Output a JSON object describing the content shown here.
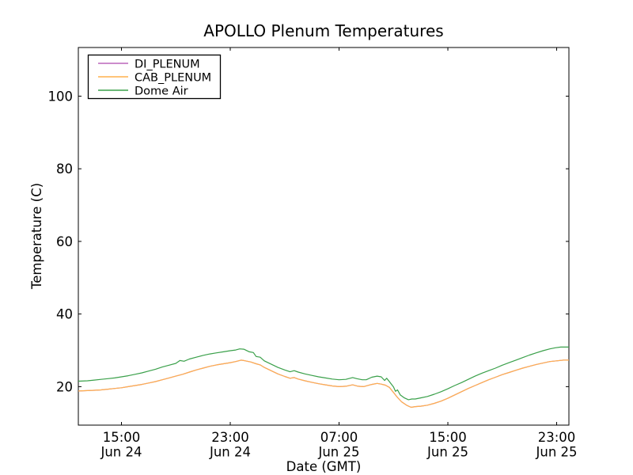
{
  "figure": {
    "background": "#ffffff"
  },
  "chart_data": {
    "type": "line",
    "title": "APOLLO Plenum Temperatures",
    "xlabel": "Date (GMT)",
    "ylabel": "Temperature (C)",
    "grid": false,
    "frame": true,
    "x_unit": "hours since Jun 24 00:00 GMT",
    "xlim": [
      11.83,
      47.9
    ],
    "ylim": [
      9.4,
      113.4
    ],
    "yticks": [
      20,
      40,
      60,
      80,
      100
    ],
    "xticks": [
      {
        "hour": 15,
        "line1": "15:00",
        "line2": "Jun 24"
      },
      {
        "hour": 23,
        "line1": "23:00",
        "line2": "Jun 24"
      },
      {
        "hour": 31,
        "line1": "07:00",
        "line2": "Jun 25"
      },
      {
        "hour": 39,
        "line1": "15:00",
        "line2": "Jun 25"
      },
      {
        "hour": 47,
        "line1": "23:00",
        "line2": "Jun 25"
      }
    ],
    "legend": {
      "position": "upper left",
      "entries": [
        "DI_PLENUM",
        "CAB_PLENUM",
        "Dome Air"
      ]
    },
    "series": [
      {
        "name": "DI_PLENUM",
        "color": "#bb66bb",
        "hidden": true,
        "note": "coincident with CAB_PLENUM, drawn beneath it (not separately visible)",
        "points": [
          [
            11.83,
            18.8
          ],
          [
            12.5,
            18.9
          ],
          [
            13,
            19.0
          ],
          [
            13.5,
            19.1
          ],
          [
            14,
            19.3
          ],
          [
            14.5,
            19.5
          ],
          [
            15,
            19.7
          ],
          [
            15.5,
            20.0
          ],
          [
            16,
            20.3
          ],
          [
            16.5,
            20.6
          ],
          [
            17,
            21.0
          ],
          [
            17.5,
            21.4
          ],
          [
            18,
            21.9
          ],
          [
            18.5,
            22.4
          ],
          [
            19,
            22.9
          ],
          [
            19.5,
            23.4
          ],
          [
            20,
            24.0
          ],
          [
            20.5,
            24.6
          ],
          [
            21,
            25.1
          ],
          [
            21.5,
            25.6
          ],
          [
            22,
            26.0
          ],
          [
            22.5,
            26.3
          ],
          [
            23,
            26.6
          ],
          [
            23.4,
            26.9
          ],
          [
            23.8,
            27.3
          ],
          [
            24,
            27.2
          ],
          [
            24.5,
            26.8
          ],
          [
            24.9,
            26.3
          ],
          [
            25.2,
            26.0
          ],
          [
            25.5,
            25.3
          ],
          [
            26,
            24.4
          ],
          [
            26.5,
            23.5
          ],
          [
            27,
            22.8
          ],
          [
            27.4,
            22.3
          ],
          [
            27.7,
            22.5
          ],
          [
            28,
            22.1
          ],
          [
            28.5,
            21.6
          ],
          [
            29,
            21.2
          ],
          [
            29.5,
            20.8
          ],
          [
            30,
            20.5
          ],
          [
            30.5,
            20.2
          ],
          [
            31,
            20.0
          ],
          [
            31.5,
            20.1
          ],
          [
            32,
            20.5
          ],
          [
            32.4,
            20.1
          ],
          [
            32.8,
            20.0
          ],
          [
            33.4,
            20.6
          ],
          [
            33.8,
            20.9
          ],
          [
            34.1,
            20.7
          ],
          [
            34.4,
            20.4
          ],
          [
            34.7,
            19.8
          ],
          [
            35,
            18.4
          ],
          [
            35.3,
            17.0
          ],
          [
            35.6,
            15.8
          ],
          [
            36,
            14.8
          ],
          [
            36.3,
            14.3
          ],
          [
            36.6,
            14.5
          ],
          [
            37,
            14.6
          ],
          [
            37.5,
            14.9
          ],
          [
            38,
            15.4
          ],
          [
            38.5,
            16.0
          ],
          [
            39,
            16.8
          ],
          [
            39.5,
            17.7
          ],
          [
            40,
            18.6
          ],
          [
            40.5,
            19.5
          ],
          [
            41,
            20.3
          ],
          [
            41.5,
            21.1
          ],
          [
            42,
            21.9
          ],
          [
            42.5,
            22.6
          ],
          [
            43,
            23.3
          ],
          [
            43.5,
            23.9
          ],
          [
            44,
            24.5
          ],
          [
            44.5,
            25.1
          ],
          [
            45,
            25.6
          ],
          [
            45.5,
            26.1
          ],
          [
            46,
            26.5
          ],
          [
            46.5,
            26.9
          ],
          [
            47,
            27.1
          ],
          [
            47.5,
            27.3
          ],
          [
            47.9,
            27.3
          ]
        ]
      },
      {
        "name": "CAB_PLENUM",
        "color": "#ffb04d",
        "hidden": false,
        "points": [
          [
            11.83,
            18.8
          ],
          [
            12.5,
            18.9
          ],
          [
            13,
            19.0
          ],
          [
            13.5,
            19.1
          ],
          [
            14,
            19.3
          ],
          [
            14.5,
            19.5
          ],
          [
            15,
            19.7
          ],
          [
            15.5,
            20.0
          ],
          [
            16,
            20.3
          ],
          [
            16.5,
            20.6
          ],
          [
            17,
            21.0
          ],
          [
            17.5,
            21.4
          ],
          [
            18,
            21.9
          ],
          [
            18.5,
            22.4
          ],
          [
            19,
            22.9
          ],
          [
            19.5,
            23.4
          ],
          [
            20,
            24.0
          ],
          [
            20.5,
            24.6
          ],
          [
            21,
            25.1
          ],
          [
            21.5,
            25.6
          ],
          [
            22,
            26.0
          ],
          [
            22.5,
            26.3
          ],
          [
            23,
            26.6
          ],
          [
            23.4,
            26.9
          ],
          [
            23.8,
            27.3
          ],
          [
            24,
            27.2
          ],
          [
            24.5,
            26.8
          ],
          [
            24.9,
            26.3
          ],
          [
            25.2,
            26.0
          ],
          [
            25.5,
            25.3
          ],
          [
            26,
            24.4
          ],
          [
            26.5,
            23.5
          ],
          [
            27,
            22.8
          ],
          [
            27.4,
            22.3
          ],
          [
            27.7,
            22.5
          ],
          [
            28,
            22.1
          ],
          [
            28.5,
            21.6
          ],
          [
            29,
            21.2
          ],
          [
            29.5,
            20.8
          ],
          [
            30,
            20.5
          ],
          [
            30.5,
            20.2
          ],
          [
            31,
            20.0
          ],
          [
            31.5,
            20.1
          ],
          [
            32,
            20.5
          ],
          [
            32.4,
            20.1
          ],
          [
            32.8,
            20.0
          ],
          [
            33.4,
            20.6
          ],
          [
            33.8,
            20.9
          ],
          [
            34.1,
            20.7
          ],
          [
            34.4,
            20.4
          ],
          [
            34.7,
            19.8
          ],
          [
            35,
            18.4
          ],
          [
            35.3,
            17.0
          ],
          [
            35.6,
            15.8
          ],
          [
            36,
            14.8
          ],
          [
            36.3,
            14.3
          ],
          [
            36.6,
            14.5
          ],
          [
            37,
            14.6
          ],
          [
            37.5,
            14.9
          ],
          [
            38,
            15.4
          ],
          [
            38.5,
            16.0
          ],
          [
            39,
            16.8
          ],
          [
            39.5,
            17.7
          ],
          [
            40,
            18.6
          ],
          [
            40.5,
            19.5
          ],
          [
            41,
            20.3
          ],
          [
            41.5,
            21.1
          ],
          [
            42,
            21.9
          ],
          [
            42.5,
            22.6
          ],
          [
            43,
            23.3
          ],
          [
            43.5,
            23.9
          ],
          [
            44,
            24.5
          ],
          [
            44.5,
            25.1
          ],
          [
            45,
            25.6
          ],
          [
            45.5,
            26.1
          ],
          [
            46,
            26.5
          ],
          [
            46.5,
            26.9
          ],
          [
            47,
            27.1
          ],
          [
            47.5,
            27.3
          ],
          [
            47.9,
            27.3
          ]
        ]
      },
      {
        "name": "Dome Air",
        "color": "#3aa04a",
        "hidden": false,
        "points": [
          [
            11.83,
            21.5
          ],
          [
            12.5,
            21.6
          ],
          [
            13,
            21.8
          ],
          [
            13.5,
            22.0
          ],
          [
            14,
            22.2
          ],
          [
            14.5,
            22.4
          ],
          [
            15,
            22.7
          ],
          [
            15.5,
            23.0
          ],
          [
            16,
            23.4
          ],
          [
            16.5,
            23.8
          ],
          [
            17,
            24.3
          ],
          [
            17.5,
            24.8
          ],
          [
            18,
            25.4
          ],
          [
            18.5,
            25.9
          ],
          [
            19,
            26.4
          ],
          [
            19.3,
            27.2
          ],
          [
            19.6,
            27.0
          ],
          [
            20,
            27.6
          ],
          [
            20.5,
            28.1
          ],
          [
            21,
            28.6
          ],
          [
            21.5,
            29.0
          ],
          [
            22,
            29.3
          ],
          [
            22.5,
            29.6
          ],
          [
            23,
            29.9
          ],
          [
            23.4,
            30.1
          ],
          [
            23.7,
            30.4
          ],
          [
            24,
            30.3
          ],
          [
            24.4,
            29.6
          ],
          [
            24.7,
            29.4
          ],
          [
            24.9,
            28.3
          ],
          [
            25.2,
            28.1
          ],
          [
            25.5,
            27.1
          ],
          [
            26,
            26.2
          ],
          [
            26.5,
            25.3
          ],
          [
            27,
            24.6
          ],
          [
            27.4,
            24.1
          ],
          [
            27.7,
            24.4
          ],
          [
            28,
            24.0
          ],
          [
            28.5,
            23.5
          ],
          [
            29,
            23.1
          ],
          [
            29.5,
            22.7
          ],
          [
            30,
            22.4
          ],
          [
            30.5,
            22.1
          ],
          [
            31,
            21.9
          ],
          [
            31.5,
            22.0
          ],
          [
            32,
            22.5
          ],
          [
            32.3,
            22.2
          ],
          [
            32.7,
            21.9
          ],
          [
            33,
            21.9
          ],
          [
            33.4,
            22.6
          ],
          [
            33.8,
            22.9
          ],
          [
            34.1,
            22.7
          ],
          [
            34.35,
            21.7
          ],
          [
            34.5,
            22.3
          ],
          [
            34.7,
            21.4
          ],
          [
            35,
            19.9
          ],
          [
            35.15,
            18.7
          ],
          [
            35.3,
            19.1
          ],
          [
            35.5,
            17.7
          ],
          [
            35.8,
            16.9
          ],
          [
            36.1,
            16.4
          ],
          [
            36.35,
            16.6
          ],
          [
            36.6,
            16.6
          ],
          [
            37,
            16.9
          ],
          [
            37.5,
            17.3
          ],
          [
            38,
            17.9
          ],
          [
            38.5,
            18.6
          ],
          [
            39,
            19.4
          ],
          [
            39.5,
            20.3
          ],
          [
            40,
            21.1
          ],
          [
            40.5,
            22.0
          ],
          [
            41,
            22.9
          ],
          [
            41.5,
            23.7
          ],
          [
            42,
            24.4
          ],
          [
            42.5,
            25.1
          ],
          [
            43,
            25.9
          ],
          [
            43.5,
            26.6
          ],
          [
            44,
            27.3
          ],
          [
            44.5,
            28.0
          ],
          [
            45,
            28.7
          ],
          [
            45.5,
            29.3
          ],
          [
            46,
            29.9
          ],
          [
            46.5,
            30.4
          ],
          [
            46.9,
            30.7
          ],
          [
            47.3,
            30.9
          ],
          [
            47.9,
            30.9
          ]
        ]
      }
    ]
  }
}
